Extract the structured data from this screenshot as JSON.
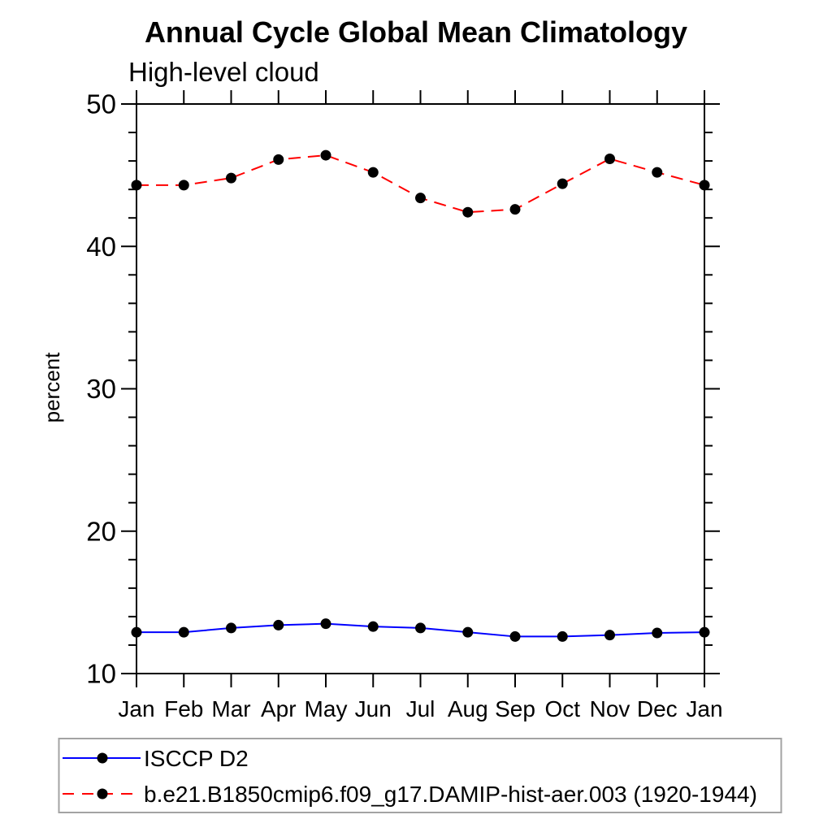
{
  "page": {
    "background": "#ffffff"
  },
  "chart_data": {
    "type": "line",
    "title": "Annual Cycle Global Mean Climatology",
    "subtitle": "High-level cloud",
    "ylabel": "percent",
    "categories": [
      "Jan",
      "Feb",
      "Mar",
      "Apr",
      "May",
      "Jun",
      "Jul",
      "Aug",
      "Sep",
      "Oct",
      "Nov",
      "Dec",
      "Jan"
    ],
    "ylim": [
      10,
      50
    ],
    "ytick_major_step": 10,
    "ytick_minor_step": 2,
    "grid": false,
    "legend_position": "bottom-left",
    "axis_color": "#000000",
    "marker_color": "#000000",
    "legend_border_color": "#a3a3a3",
    "series": [
      {
        "name": "ISCCP D2",
        "color": "#0000ff",
        "line_style": "solid",
        "marker": "filled-circle",
        "values": [
          12.9,
          12.9,
          13.2,
          13.4,
          13.5,
          13.3,
          13.2,
          12.9,
          12.6,
          12.6,
          12.7,
          12.85,
          12.9
        ]
      },
      {
        "name": "b.e21.B1850cmip6.f09_g17.DAMIP-hist-aer.003 (1920-1944)",
        "color": "#ff0000",
        "line_style": "dashed",
        "marker": "filled-circle",
        "values": [
          44.3,
          44.3,
          44.8,
          46.1,
          46.4,
          45.2,
          43.4,
          42.4,
          42.6,
          44.4,
          46.15,
          45.2,
          44.3
        ]
      }
    ]
  }
}
